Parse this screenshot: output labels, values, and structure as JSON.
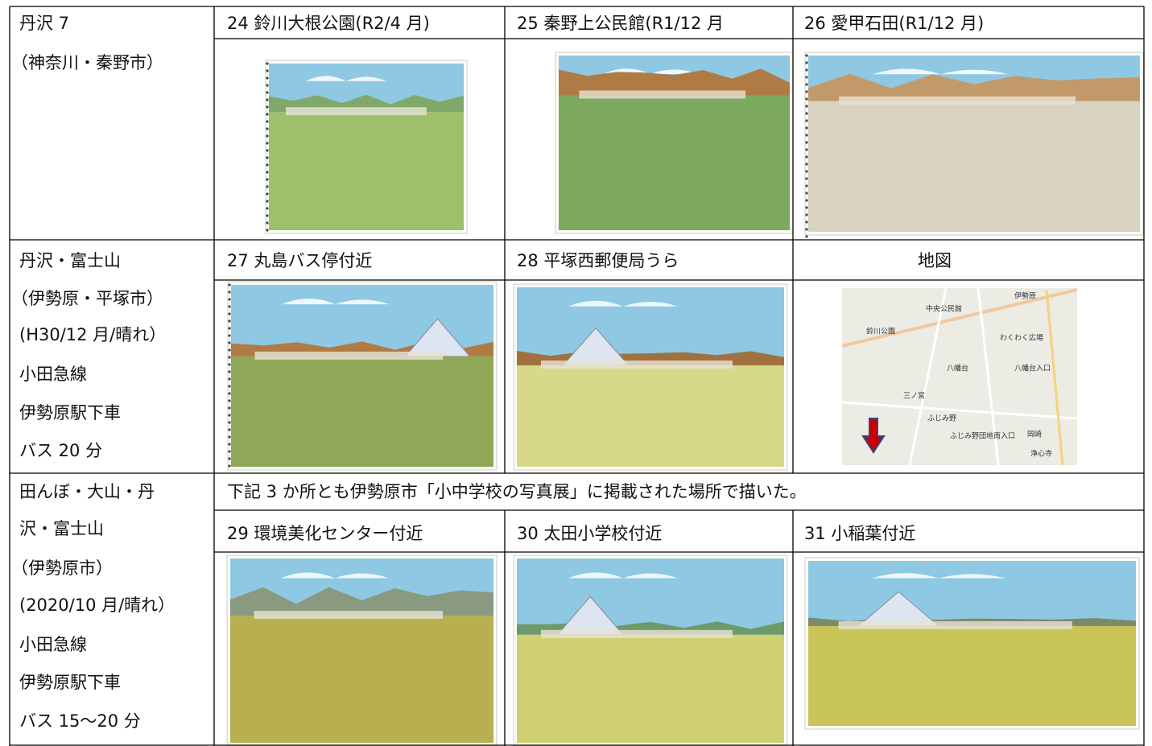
{
  "sections": [
    {
      "lines": [
        "丹沢 7",
        "（神奈川・秦野市）"
      ],
      "titles": [
        "24 鈴川大根公園(R2/4 月)",
        "25 秦野上公民館(R1/12 月",
        "26 愛甲石田(R1/12 月)"
      ]
    },
    {
      "lines": [
        "丹沢・富士山",
        "（伊勢原・平塚市）",
        "(H30/12 月/晴れ）",
        "小田急線",
        "伊勢原駅下車",
        "バス 20 分"
      ],
      "titles": [
        "27 丸島バス停付近",
        "28 平塚西郵便局うら",
        "地図"
      ]
    },
    {
      "lines": [
        "田んぼ・大山・丹",
        "沢・富士山",
        "（伊勢原市）",
        "(2020/10 月/晴れ）",
        "小田急線",
        "伊勢原駅下車",
        "バス 15～20 分"
      ],
      "note": "下記 3 か所とも伊勢原市「小中学校の写真展」に掲載された場所で描いた。",
      "titles": [
        "29 環境美化センター付近",
        "30 太田小学校付近",
        "31 小稲葉付近"
      ]
    }
  ],
  "map_labels": [
    "伊勢原",
    "中央公民館",
    "鈴川公園",
    "わくわく広場",
    "八幡台",
    "三ノ宮",
    "ふじみ野",
    "ふじみ野団地南入口",
    "八幡台入口",
    "岡崎",
    "浄心寺"
  ]
}
